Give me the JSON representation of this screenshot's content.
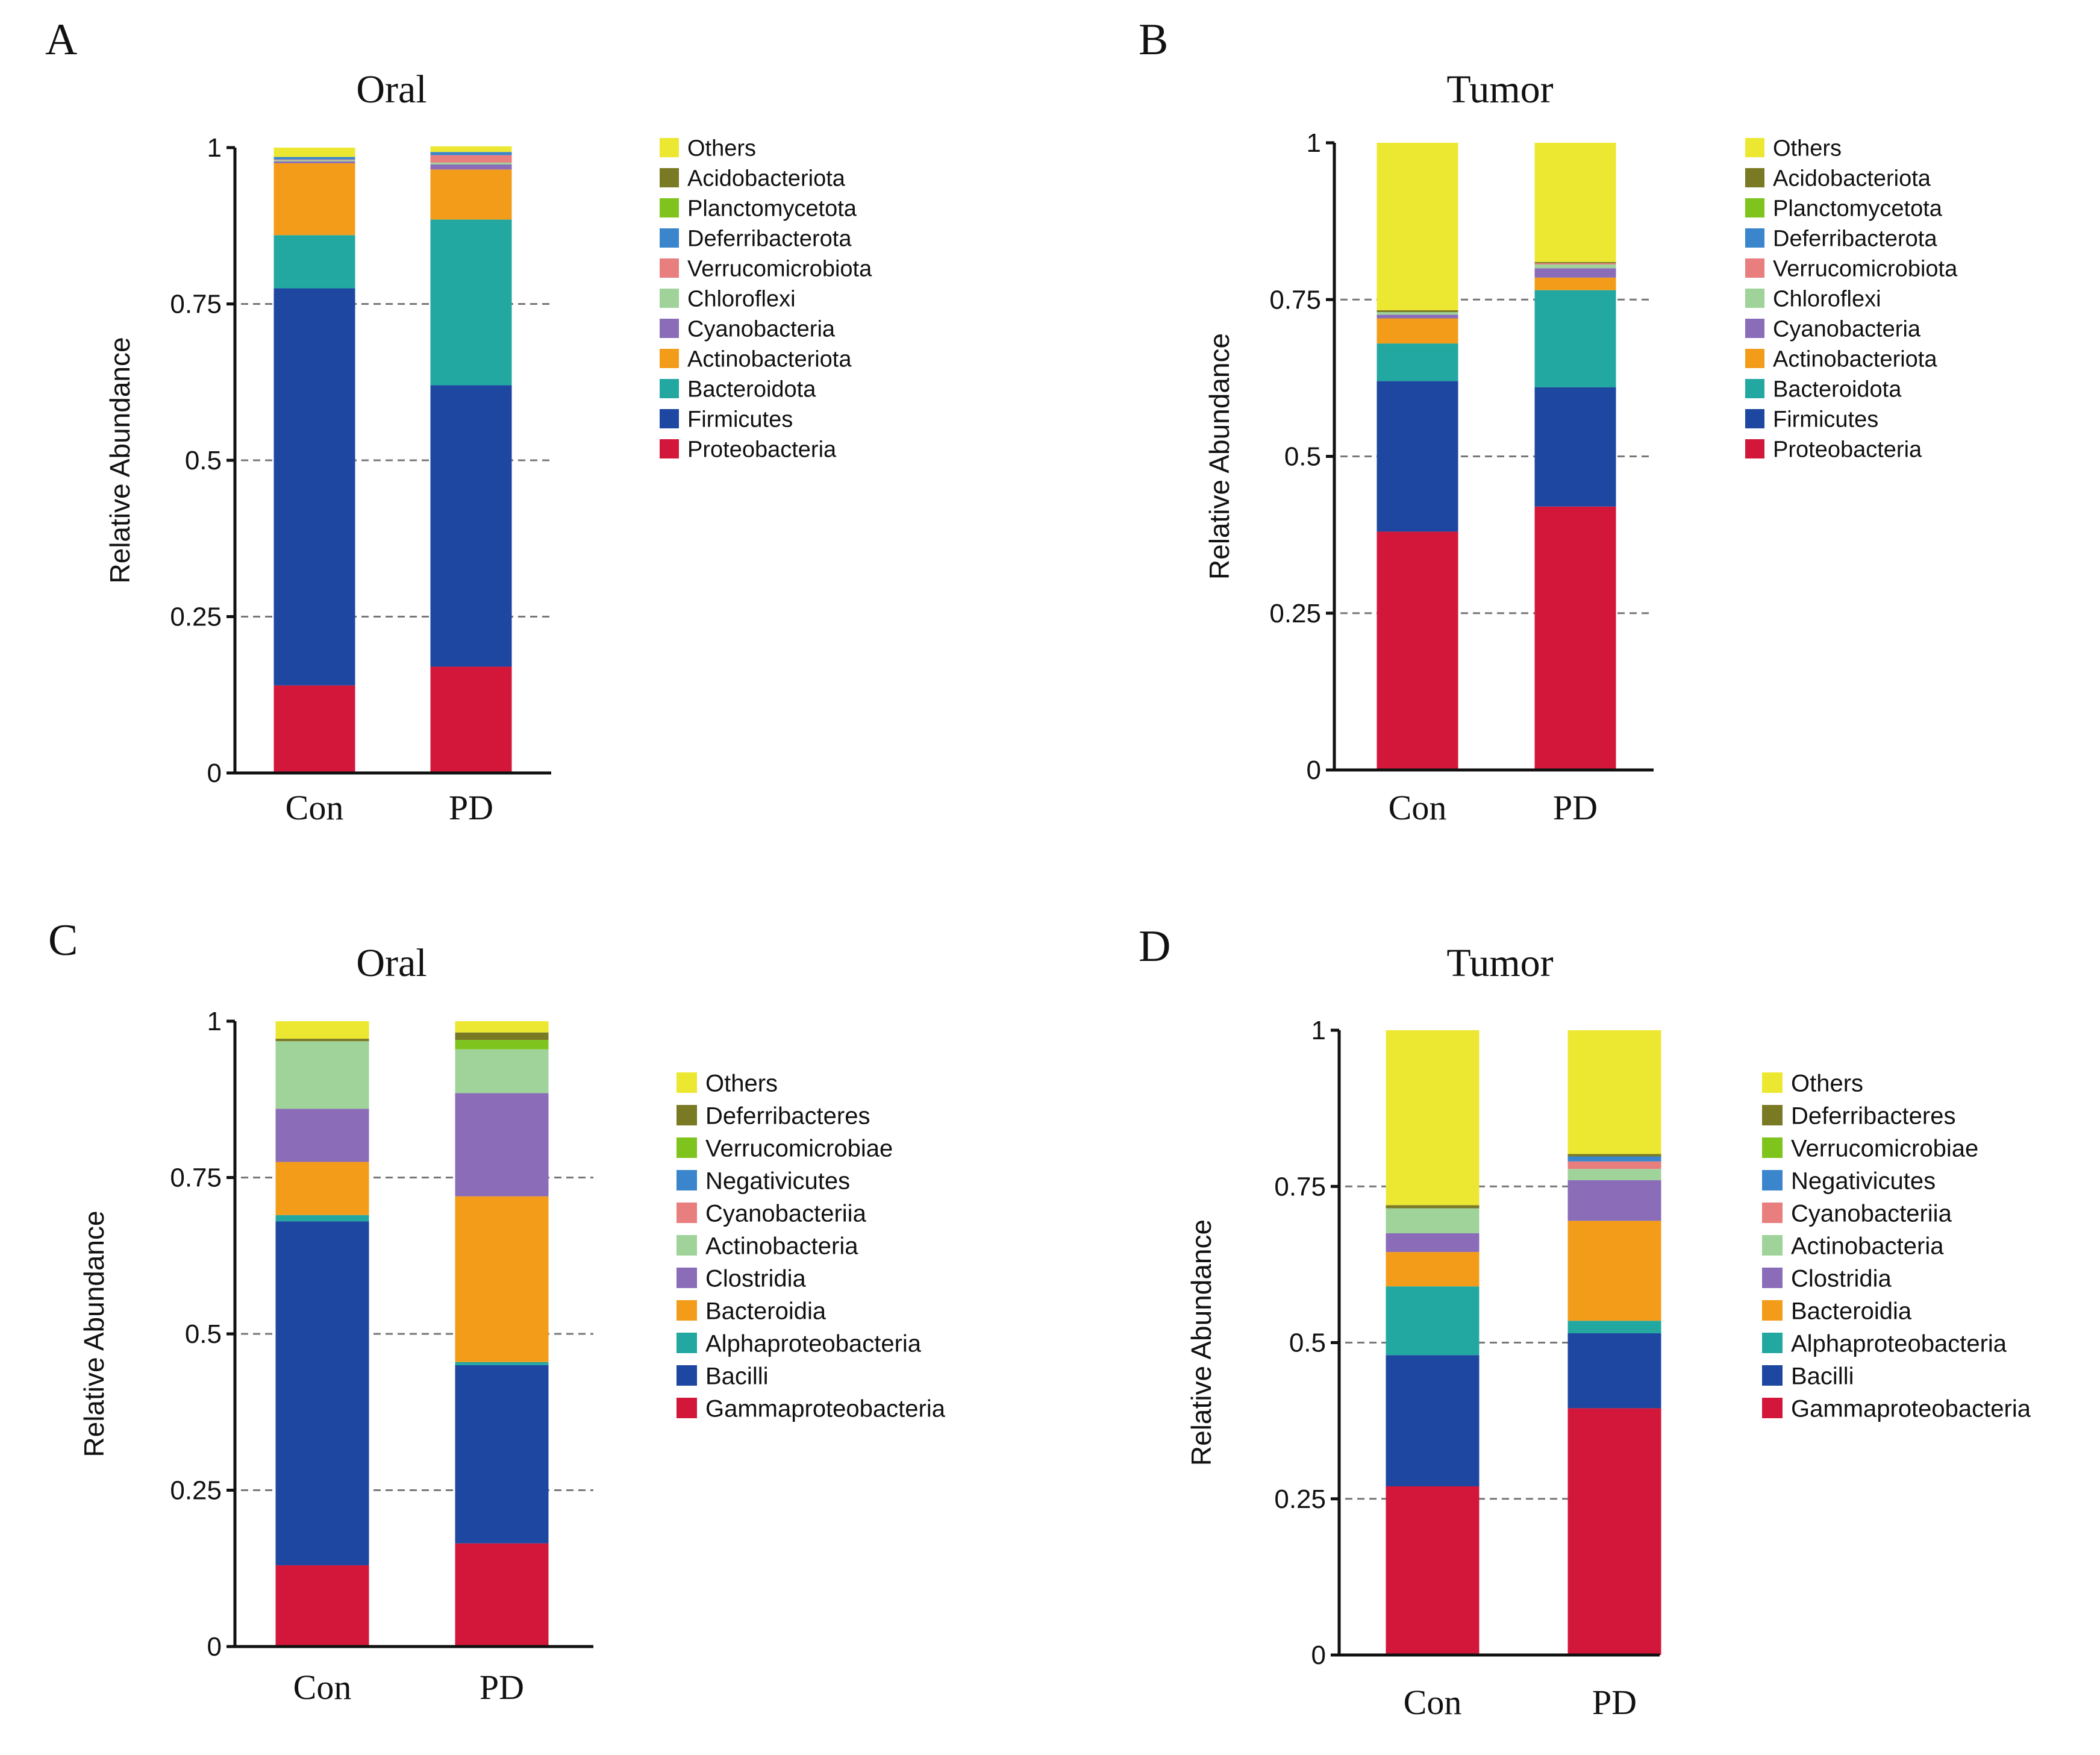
{
  "chart_data": [
    {
      "panel": "A",
      "type": "bar",
      "stacked": true,
      "title": "Oral",
      "xlabel": "",
      "ylabel": "Relative Abundance",
      "ylim": [
        0,
        1
      ],
      "yticks": [
        "0",
        "0.25",
        "0.5",
        "0.75",
        "1"
      ],
      "grid": "dashed horizontal at 0.25, 0.5, 0.75",
      "legend_position": "right",
      "categories": [
        "Con",
        "PD"
      ],
      "series": [
        {
          "name": "Proteobacteria",
          "color": "#d3173b",
          "values": [
            0.14,
            0.17
          ]
        },
        {
          "name": "Firmicutes",
          "color": "#1d47a0",
          "values": [
            0.635,
            0.45
          ]
        },
        {
          "name": "Bacteroidota",
          "color": "#22a8a0",
          "values": [
            0.085,
            0.265
          ]
        },
        {
          "name": "Actinobacteriota",
          "color": "#f39c1a",
          "values": [
            0.115,
            0.08
          ]
        },
        {
          "name": "Cyanobacteria",
          "color": "#8a6cb8",
          "values": [
            0.003,
            0.008
          ]
        },
        {
          "name": "Chloroflexi",
          "color": "#9fd39a",
          "values": [
            0.002,
            0.003
          ]
        },
        {
          "name": "Verrucomicrobiota",
          "color": "#e87e7e",
          "values": [
            0.001,
            0.012
          ]
        },
        {
          "name": "Deferribacterota",
          "color": "#3a85cc",
          "values": [
            0.004,
            0.005
          ]
        },
        {
          "name": "Planctomycetota",
          "color": "#7ec41c",
          "values": [
            0.0,
            0.0
          ]
        },
        {
          "name": "Acidobacteriota",
          "color": "#7a7a25",
          "values": [
            0.0,
            0.0
          ]
        },
        {
          "name": "Others",
          "color": "#ece832",
          "values": [
            0.015,
            0.009
          ]
        }
      ]
    },
    {
      "panel": "B",
      "type": "bar",
      "stacked": true,
      "title": "Tumor",
      "xlabel": "",
      "ylabel": "Relative Abundance",
      "ylim": [
        0,
        1
      ],
      "yticks": [
        "0",
        "0.25",
        "0.5",
        "0.75",
        "1"
      ],
      "grid": "dashed horizontal at 0.25, 0.5, 0.75",
      "legend_position": "right",
      "categories": [
        "Con",
        "PD"
      ],
      "series": [
        {
          "name": "Proteobacteria",
          "color": "#d3173b",
          "values": [
            0.38,
            0.42
          ]
        },
        {
          "name": "Firmicutes",
          "color": "#1d47a0",
          "values": [
            0.24,
            0.19
          ]
        },
        {
          "name": "Bacteroidota",
          "color": "#22a8a0",
          "values": [
            0.06,
            0.155
          ]
        },
        {
          "name": "Actinobacteriota",
          "color": "#f39c1a",
          "values": [
            0.04,
            0.02
          ]
        },
        {
          "name": "Cyanobacteria",
          "color": "#8a6cb8",
          "values": [
            0.006,
            0.015
          ]
        },
        {
          "name": "Chloroflexi",
          "color": "#9fd39a",
          "values": [
            0.004,
            0.006
          ]
        },
        {
          "name": "Verrucomicrobiota",
          "color": "#e87e7e",
          "values": [
            0.0,
            0.002
          ]
        },
        {
          "name": "Deferribacterota",
          "color": "#3a85cc",
          "values": [
            0.0,
            0.0
          ]
        },
        {
          "name": "Planctomycetota",
          "color": "#7ec41c",
          "values": [
            0.0,
            0.0
          ]
        },
        {
          "name": "Acidobacteriota",
          "color": "#7a7a25",
          "values": [
            0.003,
            0.002
          ]
        },
        {
          "name": "Others",
          "color": "#ece832",
          "values": [
            0.267,
            0.19
          ]
        }
      ]
    },
    {
      "panel": "C",
      "type": "bar",
      "stacked": true,
      "title": "Oral",
      "xlabel": "",
      "ylabel": "Relative Abundance",
      "ylim": [
        0,
        1
      ],
      "yticks": [
        "0",
        "0.25",
        "0.5",
        "0.75",
        "1"
      ],
      "grid": "dashed horizontal at 0.25, 0.5, 0.75",
      "legend_position": "right",
      "categories": [
        "Con",
        "PD"
      ],
      "series": [
        {
          "name": "Gammaproteobacteria",
          "color": "#d3173b",
          "values": [
            0.13,
            0.165
          ]
        },
        {
          "name": "Bacilli",
          "color": "#1d47a0",
          "values": [
            0.55,
            0.285
          ]
        },
        {
          "name": "Alphaproteobacteria",
          "color": "#22a8a0",
          "values": [
            0.01,
            0.005
          ]
        },
        {
          "name": "Bacteroidia",
          "color": "#f39c1a",
          "values": [
            0.085,
            0.265
          ]
        },
        {
          "name": "Clostridia",
          "color": "#8a6cb8",
          "values": [
            0.085,
            0.165
          ]
        },
        {
          "name": "Actinobacteria",
          "color": "#9fd39a",
          "values": [
            0.108,
            0.07
          ]
        },
        {
          "name": "Cyanobacteriia",
          "color": "#e87e7e",
          "values": [
            0.0,
            0.0
          ]
        },
        {
          "name": "Negativicutes",
          "color": "#3a85cc",
          "values": [
            0.0,
            0.0
          ]
        },
        {
          "name": "Verrucomicrobiae",
          "color": "#7ec41c",
          "values": [
            0.0,
            0.015
          ]
        },
        {
          "name": "Deferribacteres",
          "color": "#7a7a25",
          "values": [
            0.004,
            0.012
          ]
        },
        {
          "name": "Others",
          "color": "#ece832",
          "values": [
            0.028,
            0.018
          ]
        }
      ]
    },
    {
      "panel": "D",
      "type": "bar",
      "stacked": true,
      "title": "Tumor",
      "xlabel": "",
      "ylabel": "Relative Abundance",
      "ylim": [
        0,
        1
      ],
      "yticks": [
        "0",
        "0.25",
        "0.5",
        "0.75",
        "1"
      ],
      "grid": "dashed horizontal at 0.25, 0.5, 0.75",
      "legend_position": "right",
      "categories": [
        "Con",
        "PD"
      ],
      "series": [
        {
          "name": "Gammaproteobacteria",
          "color": "#d3173b",
          "values": [
            0.27,
            0.395
          ]
        },
        {
          "name": "Bacilli",
          "color": "#1d47a0",
          "values": [
            0.21,
            0.12
          ]
        },
        {
          "name": "Alphaproteobacteria",
          "color": "#22a8a0",
          "values": [
            0.11,
            0.02
          ]
        },
        {
          "name": "Bacteroidia",
          "color": "#f39c1a",
          "values": [
            0.055,
            0.16
          ]
        },
        {
          "name": "Clostridia",
          "color": "#8a6cb8",
          "values": [
            0.03,
            0.065
          ]
        },
        {
          "name": "Actinobacteria",
          "color": "#9fd39a",
          "values": [
            0.04,
            0.018
          ]
        },
        {
          "name": "Cyanobacteriia",
          "color": "#e87e7e",
          "values": [
            0.0,
            0.012
          ]
        },
        {
          "name": "Negativicutes",
          "color": "#3a85cc",
          "values": [
            0.0,
            0.008
          ]
        },
        {
          "name": "Verrucomicrobiae",
          "color": "#7ec41c",
          "values": [
            0.0,
            0.0
          ]
        },
        {
          "name": "Deferribacteres",
          "color": "#7a7a25",
          "values": [
            0.005,
            0.004
          ]
        },
        {
          "name": "Others",
          "color": "#ece832",
          "values": [
            0.28,
            0.198
          ]
        }
      ]
    }
  ]
}
